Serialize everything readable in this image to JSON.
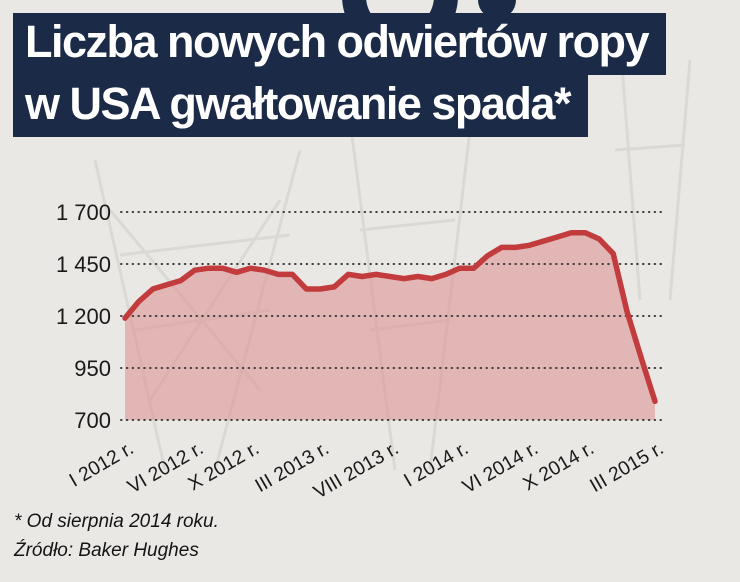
{
  "title": {
    "line1": "Liczba nowych odwiertów ropy",
    "line2": "w USA gwałtowanie spada*"
  },
  "footer": {
    "note": "* Od sierpnia 2014 roku.",
    "source": "Źródło: Baker Hughes"
  },
  "colors": {
    "title_bg": "#1b2a47",
    "line": "#c23b3d",
    "fill": "#dd9494",
    "grid": "#3f3f3f",
    "text": "#1a1a1a",
    "background": "#e9e8e5"
  },
  "chart_data": {
    "type": "area",
    "title": "Liczba nowych odwiertów ropy w USA gwałtowanie spada*",
    "xlabel": "",
    "ylabel": "",
    "ylim": [
      700,
      1700
    ],
    "grid": "dotted-horizontal",
    "legend": "none",
    "x": [
      0,
      1,
      2,
      3,
      4,
      5,
      6,
      7,
      8,
      9,
      10,
      11,
      12,
      13,
      14,
      15,
      16,
      17,
      18,
      19,
      20,
      21,
      22,
      23,
      24,
      25,
      26,
      27,
      28,
      29,
      30,
      31,
      32,
      33,
      34,
      35,
      36,
      37,
      38
    ],
    "values": [
      1190,
      1270,
      1330,
      1350,
      1370,
      1420,
      1430,
      1430,
      1410,
      1430,
      1420,
      1400,
      1400,
      1330,
      1330,
      1340,
      1400,
      1390,
      1400,
      1390,
      1380,
      1390,
      1380,
      1400,
      1430,
      1430,
      1490,
      1530,
      1530,
      1540,
      1560,
      1580,
      1600,
      1600,
      1570,
      1500,
      1220,
      1000,
      790
    ],
    "x_tick_positions": [
      0,
      5,
      9,
      14,
      19,
      24,
      29,
      33,
      38
    ],
    "x_tick_labels": [
      "I 2012 r.",
      "VI 2012 r.",
      "X 2012 r.",
      "III 2013 r.",
      "VIII 2013 r.",
      "I 2014 r.",
      "VI 2014 r.",
      "X 2014 r.",
      "III 2015 r."
    ],
    "y_ticks": [
      1700,
      1450,
      1200,
      950,
      700
    ],
    "y_tick_labels": [
      "1 700",
      "1 450",
      "1 200",
      "950",
      "700"
    ]
  }
}
